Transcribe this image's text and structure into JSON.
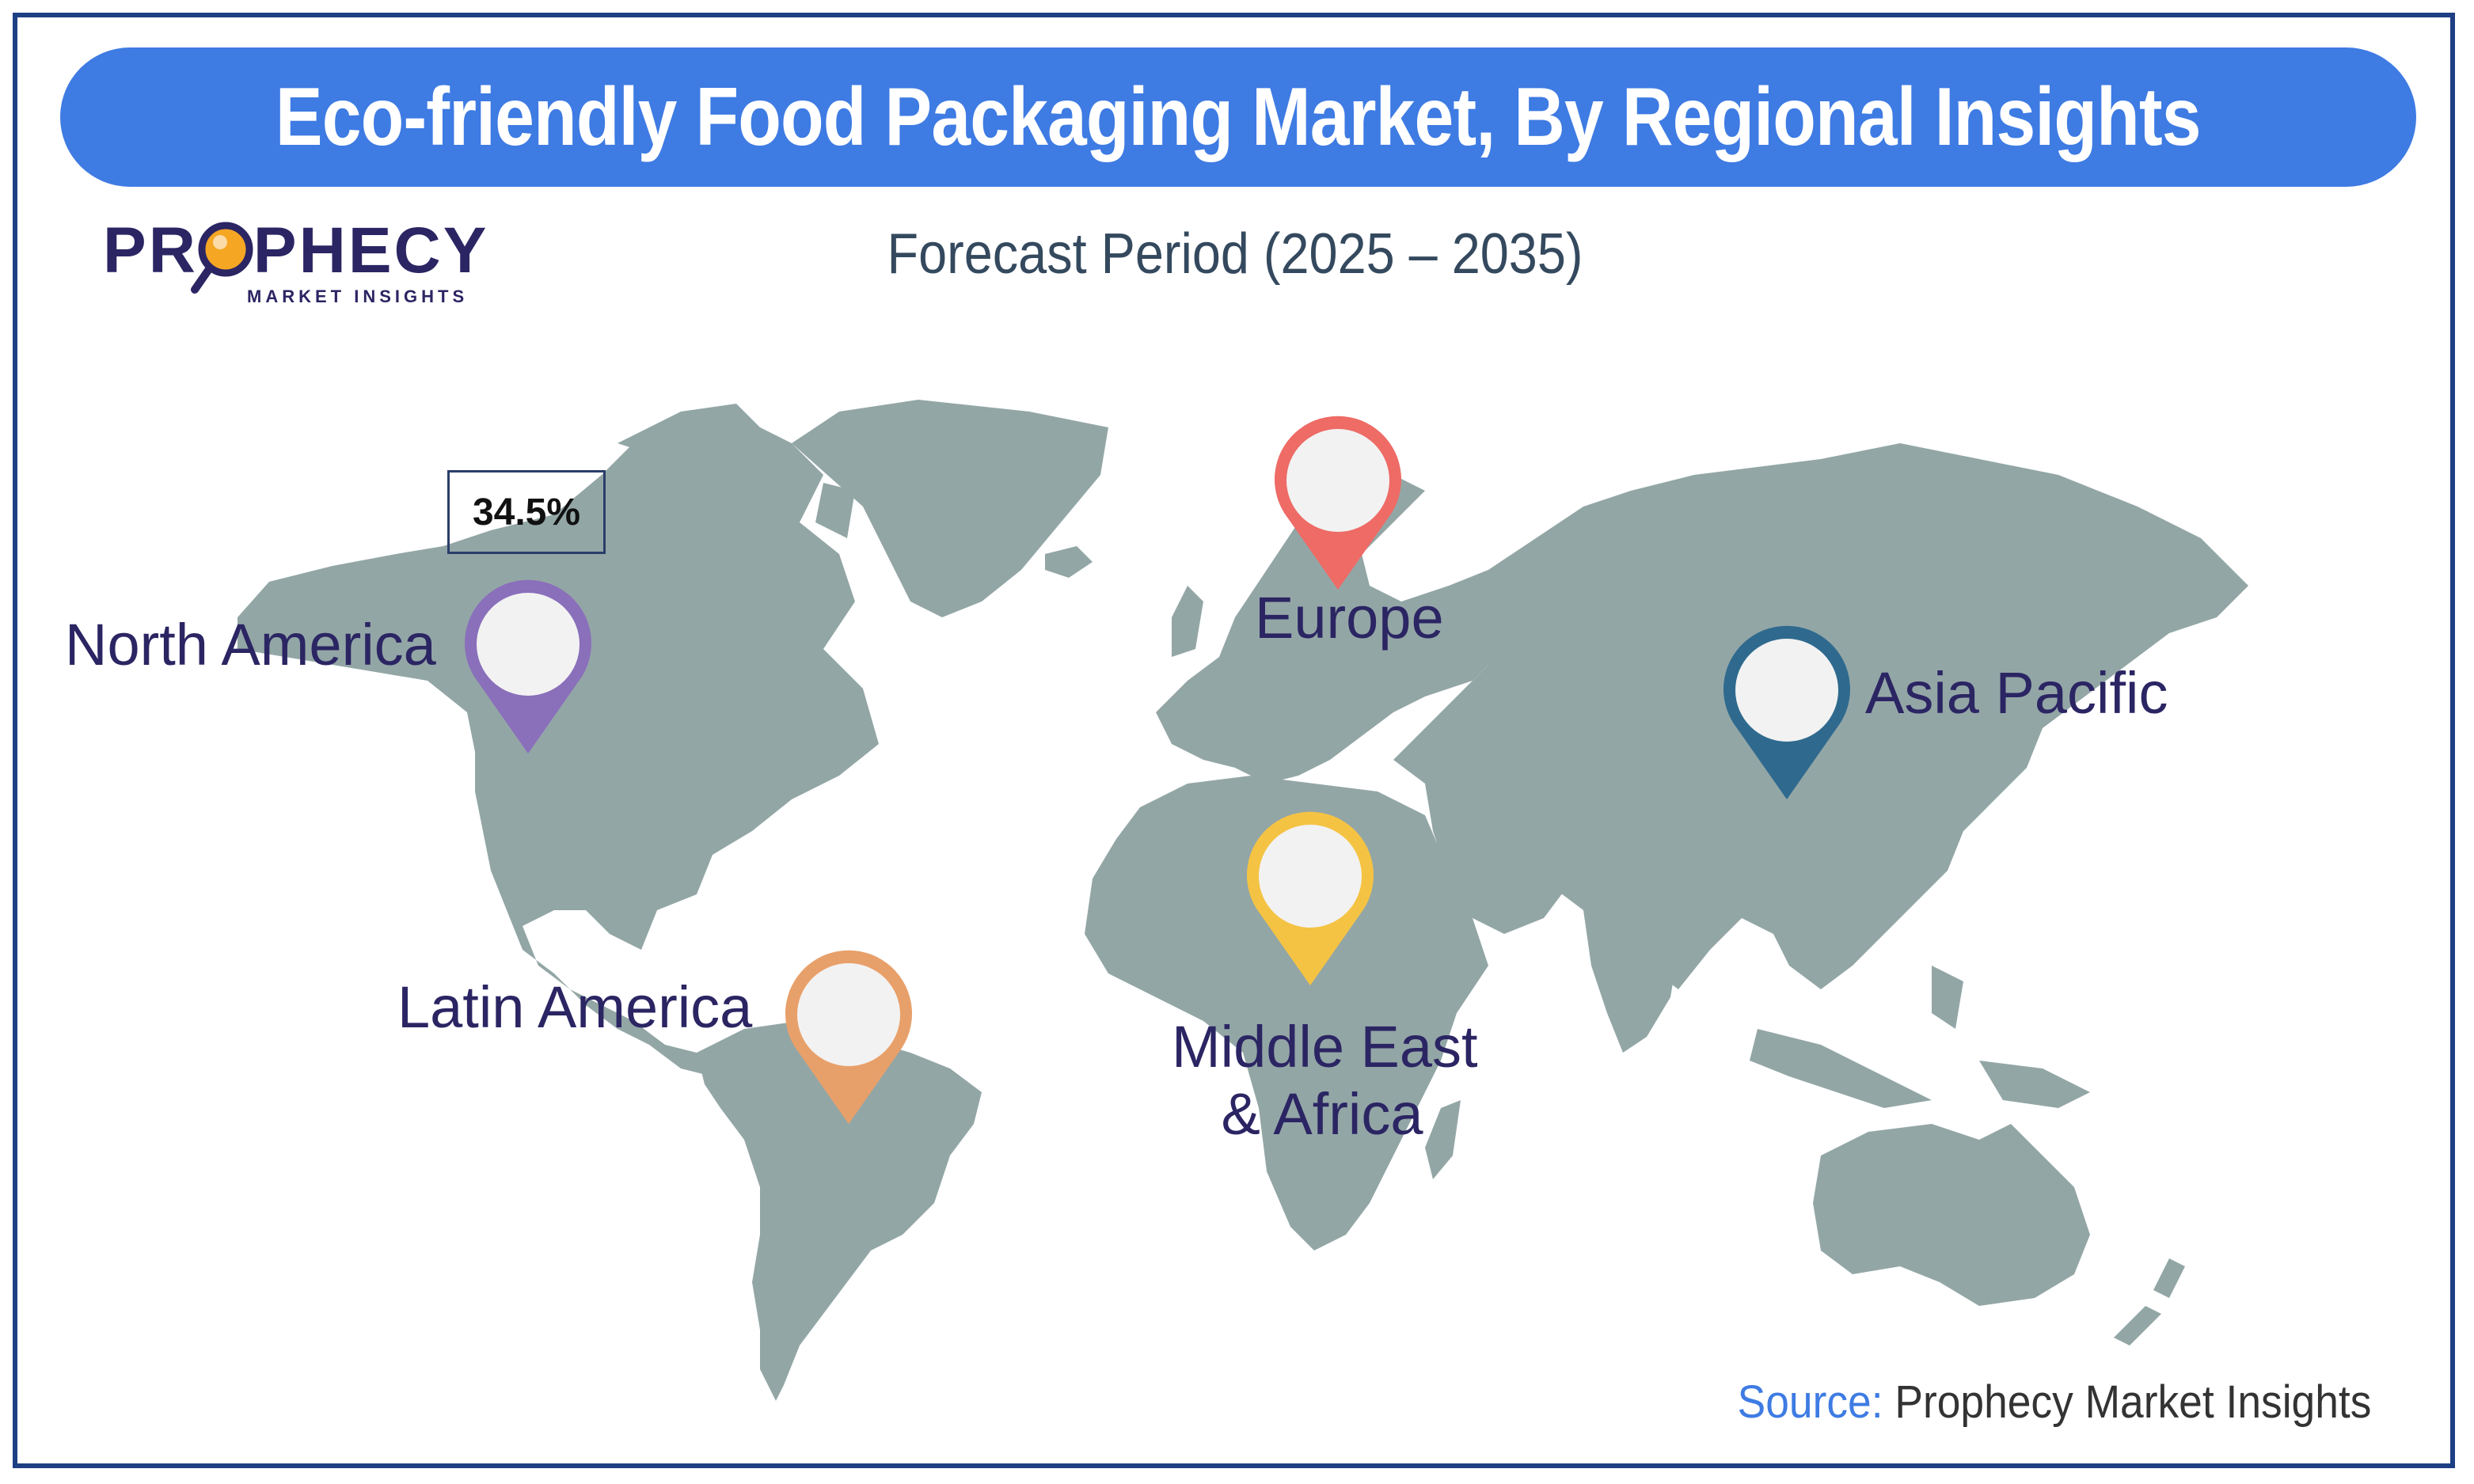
{
  "title": "Eco-friendly Food Packaging Market, By Regional Insights",
  "subtitle": "Forecast Period (2025 – 2035)",
  "logo": {
    "word_left": "PR",
    "word_right": "PHECY",
    "tagline": "MARKET INSIGHTS"
  },
  "regions": {
    "north_america": {
      "label": "North America",
      "color": "#8a6fbb",
      "share_badge": "34.5%"
    },
    "europe": {
      "label": "Europe",
      "color": "#ee6b66"
    },
    "asia_pacific": {
      "label": "Asia Pacific",
      "color": "#2f6a8e"
    },
    "latin_america": {
      "label": "Latin America",
      "color": "#e8a06a"
    },
    "middle_east_africa": {
      "label_line1": "Middle East",
      "label_line2": "& Africa",
      "color": "#f5c343"
    }
  },
  "source": {
    "label": "Source:",
    "value": " Prophecy Market Insights"
  },
  "colors": {
    "land": "#93a6a6",
    "title_bar": "#3e7be3",
    "frame": "#1e3f84",
    "text_dark": "#2b2563"
  }
}
